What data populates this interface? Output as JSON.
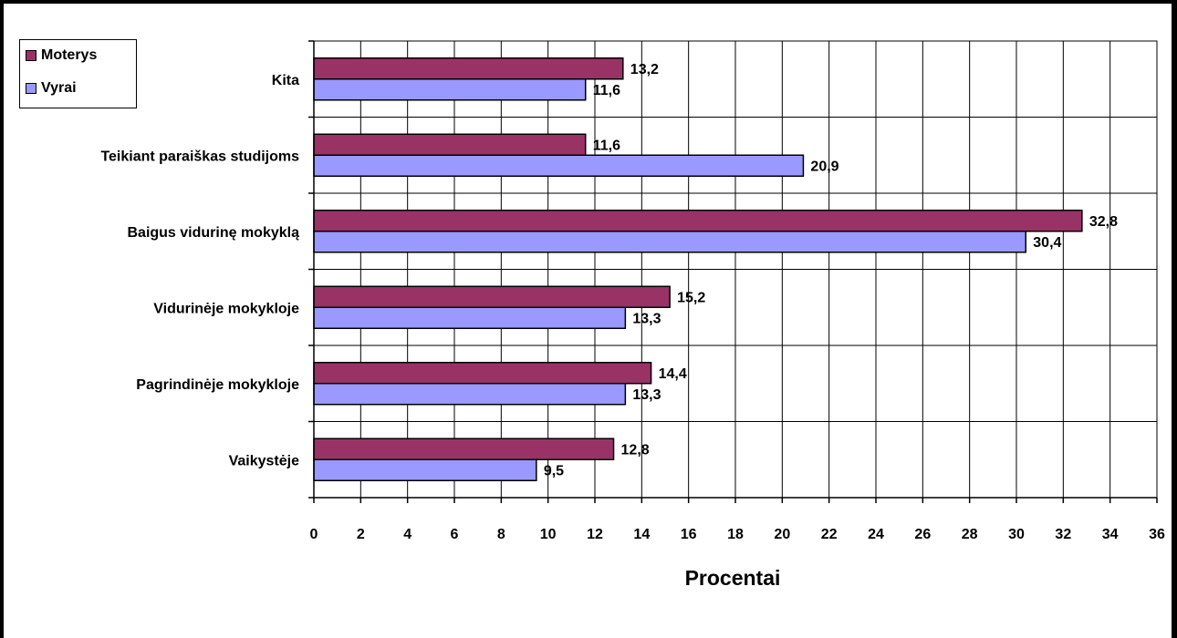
{
  "chart_data": {
    "type": "bar",
    "orientation": "horizontal",
    "categories": [
      "Kita",
      "Teikiant paraiškas studijoms",
      "Baigus vidurinę mokyklą",
      "Vidurinėje mokykloje",
      "Pagrindinėje mokykloje",
      "Vaikystėje"
    ],
    "series": [
      {
        "name": "Moterys",
        "color": "#993366",
        "values": [
          13.2,
          11.6,
          32.8,
          15.2,
          14.4,
          12.8
        ],
        "labels": [
          "13,2",
          "11,6",
          "32,8",
          "15,2",
          "14,4",
          "12,8"
        ]
      },
      {
        "name": "Vyrai",
        "color": "#9999ff",
        "values": [
          11.6,
          20.9,
          30.4,
          13.3,
          13.3,
          9.5
        ],
        "labels": [
          "11,6",
          "20,9",
          "30,4",
          "13,3",
          "13,3",
          "9,5"
        ]
      }
    ],
    "xlabel": "Procentai",
    "ylabel": "",
    "xlim": [
      0,
      36
    ],
    "xticks": [
      0,
      2,
      4,
      6,
      8,
      10,
      12,
      14,
      16,
      18,
      20,
      22,
      24,
      26,
      28,
      30,
      32,
      34,
      36
    ],
    "grid": true,
    "legend": "top-left"
  }
}
